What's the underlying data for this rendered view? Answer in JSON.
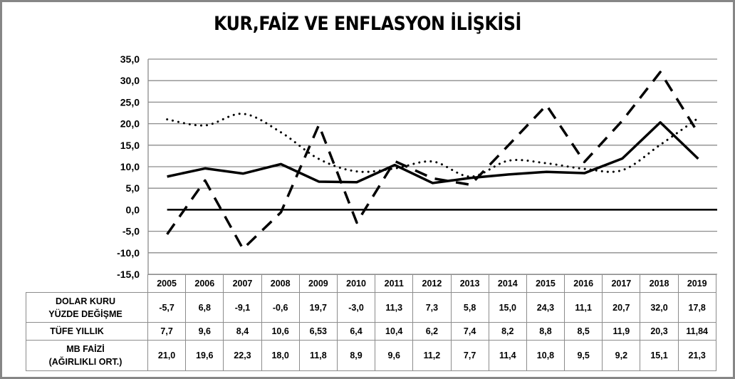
{
  "title": "KUR,FAİZ VE ENFLASYON İLİŞKİSİ",
  "chart_data": {
    "type": "line",
    "title": "KUR,FAİZ VE ENFLASYON İLİŞKİSİ",
    "xlabel": "",
    "ylabel": "",
    "ylim": [
      -15,
      35
    ],
    "yticks": [
      "35,0",
      "30,0",
      "25,0",
      "20,0",
      "15,0",
      "10,0",
      "5,0",
      "0,0",
      "-5,0",
      "-10,0",
      "-15,0"
    ],
    "grid": true,
    "legend_position": "data-table",
    "categories": [
      "2005",
      "2006",
      "2007",
      "2008",
      "2009",
      "2010",
      "2011",
      "2012",
      "2013",
      "2014",
      "2015",
      "2016",
      "2017",
      "2018",
      "2019"
    ],
    "series": [
      {
        "name": "DOLAR KURU YÜZDE DEĞİŞME",
        "style": "dashed",
        "color": "#000000",
        "values": [
          -5.7,
          6.8,
          -9.1,
          -0.6,
          19.7,
          -3.0,
          11.3,
          7.3,
          5.8,
          15.0,
          24.3,
          11.1,
          20.7,
          32.0,
          17.8
        ],
        "labels": [
          "-5,7",
          "6,8",
          "-9,1",
          "-0,6",
          "19,7",
          "-3,0",
          "11,3",
          "7,3",
          "5,8",
          "15,0",
          "24,3",
          "11,1",
          "20,7",
          "32,0",
          "17,8"
        ]
      },
      {
        "name": "TÜFE YILLIK",
        "style": "solid",
        "color": "#000000",
        "values": [
          7.7,
          9.6,
          8.4,
          10.6,
          6.53,
          6.4,
          10.4,
          6.2,
          7.4,
          8.2,
          8.8,
          8.5,
          11.9,
          20.3,
          11.84
        ],
        "labels": [
          "7,7",
          "9,6",
          "8,4",
          "10,6",
          "6,53",
          "6,4",
          "10,4",
          "6,2",
          "7,4",
          "8,2",
          "8,8",
          "8,5",
          "11,9",
          "20,3",
          "11,84"
        ]
      },
      {
        "name": "MB FAİZİ (AĞIRLIKLI ORT.)",
        "style": "dotted",
        "color": "#000000",
        "values": [
          21.0,
          19.6,
          22.3,
          18.0,
          11.8,
          8.9,
          9.6,
          11.2,
          7.7,
          11.4,
          10.8,
          9.5,
          9.2,
          15.1,
          21.3
        ],
        "labels": [
          "21,0",
          "19,6",
          "22,3",
          "18,0",
          "11,8",
          "8,9",
          "9,6",
          "11,2",
          "7,7",
          "11,4",
          "10,8",
          "9,5",
          "9,2",
          "15,1",
          "21,3"
        ]
      }
    ]
  },
  "table": {
    "row_labels": [
      {
        "line1": "DOLAR KURU",
        "line2": "YÜZDE DEĞİŞME"
      },
      {
        "line1": "TÜFE YILLIK",
        "line2": ""
      },
      {
        "line1": "MB FAİZİ",
        "line2": "(AĞIRLIKLI ORT.)"
      }
    ]
  },
  "colors": {
    "frame": "#868686",
    "grid": "#8c8c8c",
    "line": "#000000"
  }
}
